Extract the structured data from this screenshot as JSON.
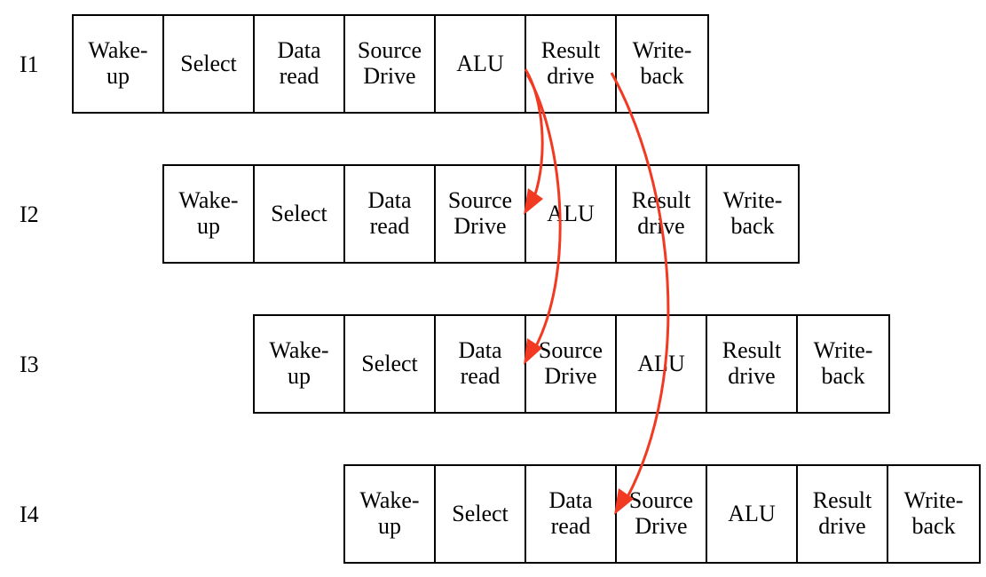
{
  "rows": [
    {
      "label": "I1",
      "stages": [
        "Wake-\nup",
        "Select",
        "Data\nread",
        "Source\nDrive",
        "ALU",
        "Result\ndrive",
        "Write-\nback"
      ]
    },
    {
      "label": "I2",
      "stages": [
        "Wake-\nup",
        "Select",
        "Data\nread",
        "Source\nDrive",
        "ALU",
        "Result\ndrive",
        "Write-\nback"
      ]
    },
    {
      "label": "I3",
      "stages": [
        "Wake-\nup",
        "Select",
        "Data\nread",
        "Source\nDrive",
        "ALU",
        "Result\ndrive",
        "Write-\nback"
      ]
    },
    {
      "label": "I4",
      "stages": [
        "Wake-\nup",
        "Select",
        "Data\nread",
        "Source\nDrive",
        "ALU",
        "Result\ndrive",
        "Write-\nback"
      ]
    }
  ],
  "colors": {
    "arrow": "#f23a22",
    "border": "#000000"
  }
}
